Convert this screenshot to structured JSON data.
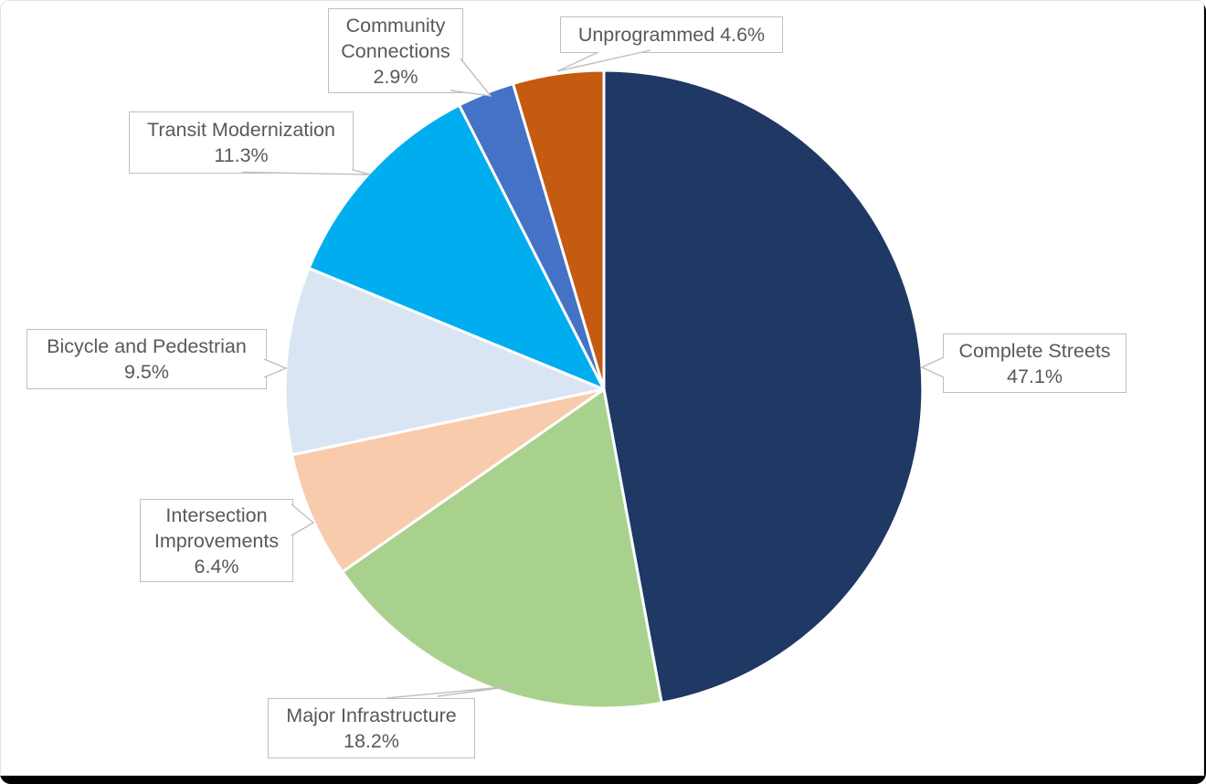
{
  "chart_data": {
    "type": "pie",
    "title": "",
    "direction": "clockwise",
    "start_angle_deg": 0,
    "legend_position": "none",
    "labels_style": "callout data labels with leader lines",
    "categories": [
      "Complete Streets",
      "Major Infrastructure",
      "Intersection Improvements",
      "Bicycle and Pedestrian",
      "Transit Modernization",
      "Community Connections",
      "Unprogrammed"
    ],
    "values": [
      47.1,
      18.2,
      6.4,
      9.5,
      11.3,
      2.9,
      4.6
    ],
    "slices": [
      {
        "label": "Complete Streets",
        "pct": 47.1,
        "color": "#1F3864",
        "callout_text": "Complete Streets\n47.1%"
      },
      {
        "label": "Major Infrastructure",
        "pct": 18.2,
        "color": "#A9D18E",
        "callout_text": "Major Infrastructure\n18.2%"
      },
      {
        "label": "Intersection Improvements",
        "pct": 6.4,
        "color": "#F8CBAD",
        "callout_text": "Intersection\nImprovements\n6.4%"
      },
      {
        "label": "Bicycle and Pedestrian",
        "pct": 9.5,
        "color": "#DAE5F3",
        "callout_text": "Bicycle and Pedestrian\n9.5%"
      },
      {
        "label": "Transit Modernization",
        "pct": 11.3,
        "color": "#00AEEF",
        "callout_text": "Transit Modernization\n11.3%"
      },
      {
        "label": "Community Connections",
        "pct": 2.9,
        "color": "#4472C4",
        "callout_text": "Community\nConnections\n2.9%"
      },
      {
        "label": "Unprogrammed",
        "pct": 4.6,
        "color": "#C55A11",
        "callout_text": "Unprogrammed 4.6%"
      }
    ],
    "slice_border_color": "#FFFFFF",
    "callout_text_color": "#595959",
    "callout_fill": "#FFFFFF",
    "callout_border_color": "#BFBFBF"
  },
  "frame": {
    "background": "#FFFFFF",
    "bottom_bar_color": "#000000"
  }
}
